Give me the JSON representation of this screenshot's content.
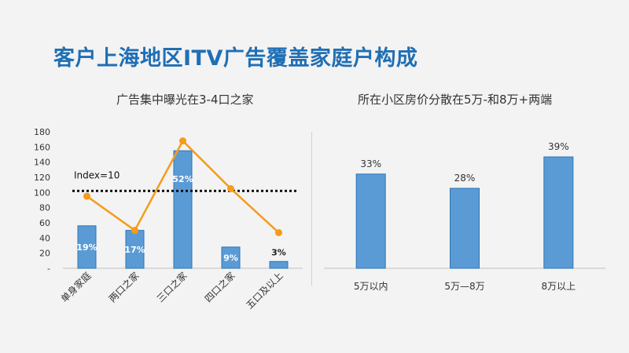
{
  "slide": {
    "title": "客户上海地区ITV广告覆盖家庭户构成"
  },
  "chart_data": [
    {
      "type": "bar",
      "title": "广告集中曝光在3-4口之家",
      "categories": [
        "单身家庭",
        "两口之家",
        "三口之家",
        "四口之家",
        "五口及以上"
      ],
      "series": [
        {
          "type": "bar",
          "values": [
            56,
            50,
            155,
            28,
            9
          ],
          "labels": [
            "19%",
            "17%",
            "52%",
            "9%",
            "3%"
          ]
        },
        {
          "type": "line",
          "values": [
            95,
            50,
            168,
            105,
            47
          ]
        }
      ],
      "yticks": [
        "-",
        "20",
        "40",
        "60",
        "80",
        "100",
        "120",
        "140",
        "160",
        "180"
      ],
      "ylim": [
        0,
        180
      ],
      "reference": {
        "value": 102,
        "label": "Index=10"
      },
      "colors": {
        "bar": "#5b9bd5",
        "bar_edge": "#2e75b6",
        "line": "#f59c1a",
        "reference": "#111111"
      }
    },
    {
      "type": "bar",
      "title": "所在小区房价分散在5万-和8万+两端",
      "categories": [
        "5万以内",
        "5万—8万",
        "8万以上"
      ],
      "values": [
        33,
        28,
        39
      ],
      "labels": [
        "33%",
        "28%",
        "39%"
      ],
      "ylim": [
        0,
        50
      ],
      "colors": {
        "bar": "#5b9bd5",
        "bar_edge": "#2e75b6"
      }
    }
  ]
}
